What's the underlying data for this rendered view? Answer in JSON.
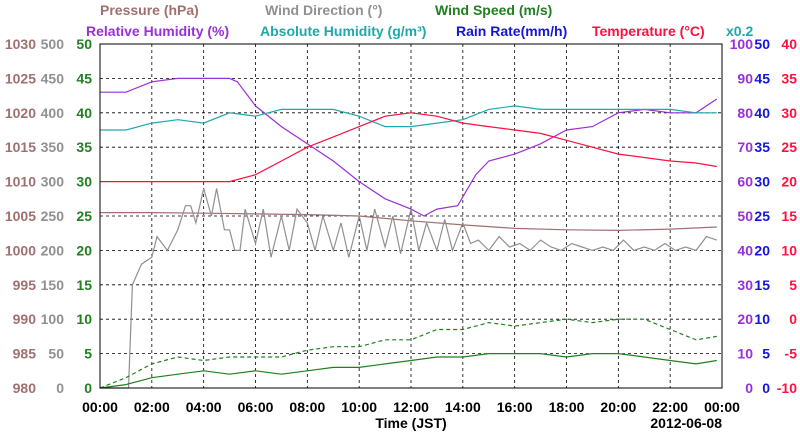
{
  "chart_data": {
    "type": "line",
    "date_label": "2012-06-08",
    "xlabel": "Time (JST)",
    "x_tick_labels": [
      "00:00",
      "02:00",
      "04:00",
      "06:00",
      "08:00",
      "10:00",
      "12:00",
      "14:00",
      "16:00",
      "18:00",
      "20:00",
      "22:00",
      "00:00"
    ],
    "x_range_hours": [
      0,
      24
    ],
    "grid": true,
    "legend_top_row": [
      {
        "text": "Pressure (hPa)",
        "color": "#a07070"
      },
      {
        "text": "Wind Direction (°)",
        "color": "#909090"
      },
      {
        "text": "Wind Speed (m/s)",
        "color": "#208020"
      }
    ],
    "legend_second_row": [
      {
        "text": "Relative Humidity (%)",
        "color": "#9a30d8"
      },
      {
        "text": "Absolute Humidity (g/m³)",
        "color": "#20a8a8"
      },
      {
        "text": "Rain Rate(mm/h)",
        "color": "#1414e0"
      },
      {
        "text": "Temperature (°C)",
        "color": "#ff1040"
      },
      {
        "text": "x0.2",
        "color": "#20a8a8"
      }
    ],
    "axes": {
      "pressure": {
        "color": "#a07070",
        "range": [
          980,
          1030
        ],
        "ticks": [
          "1030",
          "1025",
          "1020",
          "1015",
          "1010",
          "1005",
          "1000",
          "995",
          "990",
          "985",
          "980"
        ]
      },
      "wind_direction": {
        "color": "#909090",
        "range": [
          0,
          500
        ],
        "ticks": [
          "500",
          "450",
          "400",
          "350",
          "300",
          "250",
          "200",
          "150",
          "100",
          "50",
          "0"
        ]
      },
      "wind_speed": {
        "color": "#208020",
        "range": [
          0,
          50
        ],
        "ticks": [
          "50",
          "45",
          "40",
          "35",
          "30",
          "25",
          "20",
          "15",
          "10",
          "5",
          "0"
        ]
      },
      "relative_humidity": {
        "color": "#9a30d8",
        "range": [
          0,
          100
        ],
        "ticks": [
          "100",
          "90",
          "80",
          "70",
          "60",
          "50",
          "40",
          "30",
          "20",
          "10",
          "0"
        ]
      },
      "rain_rate": {
        "color": "#1414e0",
        "range": [
          0,
          50
        ],
        "ticks": [
          "50",
          "45",
          "40",
          "35",
          "30",
          "25",
          "20",
          "15",
          "10",
          "5",
          "0"
        ]
      },
      "temperature": {
        "color": "#ff1040",
        "range": [
          -10,
          40
        ],
        "ticks": [
          "40",
          "35",
          "30",
          "25",
          "20",
          "15",
          "10",
          "5",
          "0",
          "-5",
          "-10"
        ]
      }
    },
    "series": [
      {
        "name": "Relative Humidity (%)",
        "axis": "relative_humidity",
        "color": "#9a30d8",
        "style": "solid",
        "x": [
          0,
          1,
          2,
          3,
          4,
          5,
          5.3,
          6,
          7,
          8,
          9,
          10,
          11,
          12,
          12.5,
          13,
          13.8,
          14.5,
          15,
          16,
          17,
          18,
          19,
          20,
          21,
          22,
          23,
          23.8
        ],
        "y": [
          86,
          86,
          89,
          90,
          90,
          90,
          89,
          82,
          76,
          71,
          66,
          60,
          55,
          52,
          50,
          52,
          53,
          62,
          66,
          68,
          71,
          75,
          76,
          80,
          81,
          80,
          80,
          84
        ]
      },
      {
        "name": "Absolute Humidity (g/m³) x0.2",
        "axis": "wind_speed",
        "color": "#20a8a8",
        "style": "solid",
        "x": [
          0,
          1,
          2,
          3,
          4,
          5,
          6,
          7,
          8,
          9,
          10,
          11,
          12,
          13,
          14,
          15,
          16,
          17,
          18,
          19,
          20,
          21,
          22,
          23,
          23.8
        ],
        "y": [
          37.5,
          37.5,
          38.5,
          39,
          38.5,
          40,
          39.5,
          40.5,
          40.5,
          40.5,
          39.5,
          38,
          38,
          38.5,
          39,
          40.5,
          41,
          40.5,
          40.5,
          40.5,
          40.5,
          40.5,
          40.5,
          40,
          40
        ]
      },
      {
        "name": "Temperature (°C)",
        "axis": "temperature",
        "color": "#ff1040",
        "style": "solid",
        "x": [
          0,
          1,
          2,
          3,
          4,
          5,
          6,
          7,
          8,
          9,
          10,
          11,
          12,
          13,
          14,
          15,
          16,
          17,
          18,
          19,
          20,
          21,
          22,
          23,
          23.8
        ],
        "y": [
          20,
          20,
          20,
          20,
          20,
          20,
          21,
          23,
          25,
          26.5,
          28,
          29.5,
          30,
          29.5,
          28.5,
          28,
          27.5,
          27,
          26,
          25,
          24,
          23.5,
          23,
          22.7,
          22.2
        ]
      },
      {
        "name": "Pressure (hPa)",
        "axis": "pressure",
        "color": "#a07070",
        "style": "solid",
        "x": [
          0,
          2,
          4,
          6,
          8,
          10,
          12,
          14,
          16,
          18,
          20,
          22,
          23.8
        ],
        "y": [
          1005.5,
          1005.5,
          1005.4,
          1005.3,
          1005.2,
          1005,
          1004.3,
          1003.7,
          1003.2,
          1003,
          1002.9,
          1003.1,
          1003.4
        ]
      },
      {
        "name": "Wind Direction (°)",
        "axis": "wind_direction",
        "color": "#909090",
        "style": "solid",
        "x": [
          0,
          0.6,
          1.1,
          1.25,
          1.6,
          2.0,
          2.2,
          2.6,
          3.0,
          3.3,
          3.5,
          3.7,
          4.0,
          4.3,
          4.5,
          4.8,
          5.0,
          5.2,
          5.4,
          5.6,
          6.0,
          6.3,
          6.6,
          7.0,
          7.3,
          7.6,
          8.0,
          8.3,
          8.6,
          9.0,
          9.3,
          9.6,
          10.0,
          10.3,
          10.6,
          11.0,
          11.3,
          11.6,
          12.0,
          12.3,
          12.6,
          13.0,
          13.3,
          13.6,
          14.0,
          14.3,
          14.6,
          15.0,
          15.4,
          15.8,
          16.2,
          16.6,
          17.0,
          17.4,
          17.8,
          18.2,
          18.6,
          19.0,
          19.4,
          19.8,
          20.2,
          20.6,
          21.0,
          21.4,
          21.8,
          22.2,
          22.6,
          23.0,
          23.4,
          23.8
        ],
        "y": [
          0,
          0,
          0,
          150,
          180,
          190,
          220,
          200,
          230,
          265,
          265,
          240,
          290,
          250,
          290,
          230,
          230,
          200,
          200,
          260,
          210,
          260,
          190,
          250,
          200,
          260,
          240,
          200,
          250,
          200,
          240,
          190,
          250,
          200,
          260,
          205,
          250,
          195,
          260,
          200,
          240,
          200,
          245,
          200,
          240,
          210,
          215,
          200,
          220,
          205,
          210,
          200,
          215,
          205,
          200,
          210,
          205,
          200,
          205,
          200,
          215,
          200,
          205,
          200,
          210,
          200,
          205,
          200,
          220,
          215
        ]
      },
      {
        "name": "Wind Speed (m/s)",
        "axis": "wind_speed",
        "color": "#208020",
        "style": "solid",
        "x": [
          0,
          1,
          2,
          3,
          4,
          5,
          6,
          7,
          8,
          9,
          10,
          11,
          12,
          13,
          14,
          15,
          16,
          17,
          18,
          19,
          20,
          21,
          22,
          23,
          23.8
        ],
        "y": [
          0,
          0.5,
          1.5,
          2,
          2.5,
          2,
          2.5,
          2,
          2.5,
          3,
          3,
          3.5,
          4,
          4.5,
          4.5,
          5,
          5,
          5,
          4.5,
          5,
          5,
          4.5,
          4,
          3.5,
          4
        ]
      },
      {
        "name": "Wind Speed gust (m/s)",
        "axis": "wind_speed",
        "color": "#208020",
        "style": "dashed",
        "x": [
          0,
          1,
          2,
          3,
          4,
          5,
          6,
          7,
          8,
          9,
          10,
          11,
          12,
          13,
          14,
          15,
          16,
          17,
          18,
          19,
          20,
          21,
          22,
          23,
          23.8
        ],
        "y": [
          0,
          1.5,
          3.5,
          4.5,
          4,
          4.5,
          4.5,
          4.5,
          5.5,
          6,
          6,
          7,
          7,
          8.5,
          8.5,
          9.5,
          9,
          9.5,
          10,
          9.5,
          10,
          10,
          8.5,
          7,
          7.5
        ]
      }
    ]
  }
}
